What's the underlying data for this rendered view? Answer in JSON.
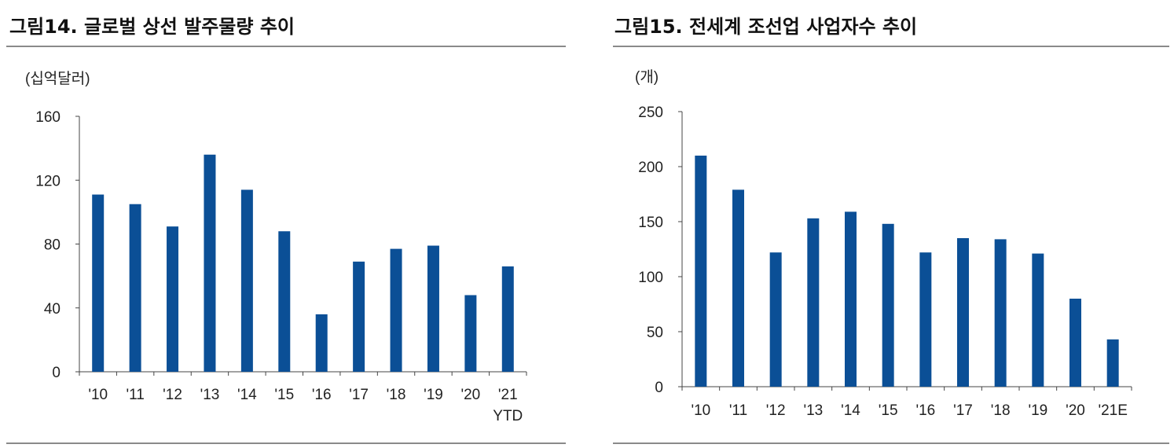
{
  "chart_data": [
    {
      "type": "bar",
      "title": "그림14. 글로벌 상선 발주물량 추이",
      "ylabel": "(십억달러)",
      "xlabel": "",
      "categories": [
        "'10",
        "'11",
        "'12",
        "'13",
        "'14",
        "'15",
        "'16",
        "'17",
        "'18",
        "'19",
        "'20",
        "'21\nYTD"
      ],
      "values": [
        111,
        105,
        91,
        136,
        114,
        88,
        36,
        69,
        77,
        79,
        48,
        66
      ],
      "ylim": [
        0,
        160
      ],
      "yticks": [
        0,
        40,
        80,
        120,
        160
      ],
      "color": "#0b4f96",
      "grid": false,
      "legend": "none"
    },
    {
      "type": "bar",
      "title": "그림15. 전세계 조선업 사업자수 추이",
      "ylabel": "(개)",
      "xlabel": "",
      "categories": [
        "'10",
        "'11",
        "'12",
        "'13",
        "'14",
        "'15",
        "'16",
        "'17",
        "'18",
        "'19",
        "'20",
        "'21E"
      ],
      "values": [
        210,
        179,
        122,
        153,
        159,
        148,
        122,
        135,
        134,
        121,
        80,
        43
      ],
      "ylim": [
        0,
        250
      ],
      "yticks": [
        0,
        50,
        100,
        150,
        200,
        250
      ],
      "color": "#0b4f96",
      "grid": false,
      "legend": "none"
    }
  ]
}
